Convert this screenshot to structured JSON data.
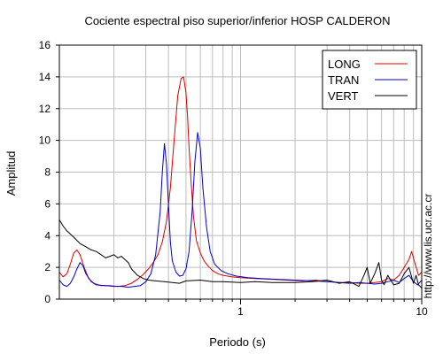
{
  "chart_data": {
    "type": "line",
    "title": "Cociente espectral piso superior/inferior  HOSP CALDERON",
    "xlabel": "Periodo (s)",
    "ylabel": "Amplitud",
    "xscale": "log",
    "xlim": [
      0.1,
      10
    ],
    "ylim": [
      0,
      16
    ],
    "x_tick_labels": [
      "1",
      "10"
    ],
    "y_ticks": [
      0,
      2,
      4,
      6,
      8,
      10,
      12,
      14,
      16
    ],
    "grid": true,
    "legend_position": "top-right",
    "series": [
      {
        "name": "LONG",
        "color": "#dd0000",
        "x": [
          0.1,
          0.105,
          0.11,
          0.115,
          0.12,
          0.125,
          0.13,
          0.137,
          0.145,
          0.155,
          0.17,
          0.19,
          0.21,
          0.23,
          0.25,
          0.27,
          0.29,
          0.31,
          0.33,
          0.35,
          0.37,
          0.39,
          0.41,
          0.43,
          0.45,
          0.47,
          0.485,
          0.5,
          0.51,
          0.52,
          0.535,
          0.55,
          0.57,
          0.6,
          0.63,
          0.66,
          0.7,
          0.75,
          0.8,
          0.9,
          1.0,
          1.2,
          1.5,
          1.8,
          2.2,
          2.6,
          3.0,
          3.5,
          4.0,
          4.5,
          5.0,
          5.5,
          6.0,
          6.5,
          7.0,
          7.5,
          8.0,
          8.5,
          8.8,
          9.2,
          9.6,
          10.0
        ],
        "values": [
          1.7,
          1.4,
          1.6,
          2.2,
          2.9,
          3.1,
          2.8,
          2.0,
          1.3,
          1.0,
          0.85,
          0.85,
          0.8,
          0.85,
          1.0,
          1.25,
          1.55,
          1.9,
          2.3,
          2.8,
          3.6,
          4.9,
          7.0,
          10.0,
          12.8,
          13.9,
          14.0,
          13.0,
          11.5,
          9.5,
          7.2,
          5.2,
          3.7,
          2.9,
          2.4,
          2.1,
          1.8,
          1.6,
          1.5,
          1.4,
          1.35,
          1.3,
          1.25,
          1.2,
          1.15,
          1.2,
          1.1,
          1.05,
          1.05,
          1.0,
          1.0,
          1.05,
          1.1,
          1.3,
          1.2,
          1.5,
          2.0,
          2.5,
          3.0,
          2.2,
          1.5,
          1.7
        ]
      },
      {
        "name": "TRAN",
        "color": "#0000cc",
        "x": [
          0.1,
          0.105,
          0.11,
          0.115,
          0.12,
          0.125,
          0.13,
          0.135,
          0.14,
          0.15,
          0.16,
          0.18,
          0.2,
          0.22,
          0.24,
          0.26,
          0.28,
          0.3,
          0.32,
          0.34,
          0.36,
          0.37,
          0.38,
          0.39,
          0.4,
          0.41,
          0.42,
          0.44,
          0.46,
          0.48,
          0.5,
          0.52,
          0.54,
          0.56,
          0.58,
          0.6,
          0.62,
          0.65,
          0.68,
          0.72,
          0.78,
          0.85,
          0.95,
          1.1,
          1.3,
          1.6,
          2.0,
          2.5,
          3.0,
          3.5,
          4.0,
          4.5,
          5.0,
          5.5,
          6.0,
          6.5,
          7.0,
          7.5,
          8.0,
          8.5,
          9.0,
          9.5,
          10.0
        ],
        "values": [
          1.2,
          0.9,
          0.8,
          1.0,
          1.4,
          1.9,
          2.3,
          2.1,
          1.6,
          1.1,
          0.9,
          0.85,
          0.8,
          0.8,
          0.75,
          0.8,
          0.85,
          1.1,
          1.6,
          2.8,
          5.5,
          8.0,
          9.8,
          8.5,
          6.0,
          3.6,
          2.4,
          1.7,
          1.45,
          1.5,
          1.9,
          3.0,
          5.5,
          8.7,
          10.5,
          9.5,
          7.0,
          4.5,
          3.0,
          2.2,
          1.8,
          1.6,
          1.45,
          1.35,
          1.3,
          1.25,
          1.2,
          1.15,
          1.1,
          1.05,
          1.0,
          1.05,
          1.0,
          0.95,
          1.0,
          1.1,
          1.2,
          1.05,
          1.3,
          1.5,
          1.1,
          0.9,
          1.2
        ]
      },
      {
        "name": "VERT",
        "color": "#000000",
        "x": [
          0.1,
          0.105,
          0.11,
          0.12,
          0.13,
          0.14,
          0.15,
          0.16,
          0.17,
          0.18,
          0.19,
          0.2,
          0.21,
          0.22,
          0.23,
          0.24,
          0.25,
          0.27,
          0.29,
          0.31,
          0.34,
          0.38,
          0.42,
          0.46,
          0.5,
          0.6,
          0.7,
          0.8,
          1.0,
          1.2,
          1.5,
          2.0,
          2.5,
          3.0,
          3.5,
          4.0,
          4.5,
          4.8,
          5.0,
          5.2,
          5.5,
          5.8,
          6.0,
          6.2,
          6.5,
          7.0,
          7.5,
          8.0,
          8.5,
          9.0,
          9.3,
          9.6,
          10.0
        ],
        "values": [
          5.0,
          4.6,
          4.3,
          3.9,
          3.5,
          3.3,
          3.1,
          3.0,
          2.8,
          2.6,
          2.7,
          2.8,
          2.6,
          2.7,
          2.5,
          2.3,
          1.9,
          1.5,
          1.3,
          1.2,
          1.15,
          1.1,
          1.05,
          1.0,
          1.15,
          1.2,
          1.1,
          1.1,
          1.05,
          1.1,
          1.05,
          1.05,
          1.1,
          1.2,
          1.0,
          1.1,
          0.8,
          1.5,
          2.0,
          1.0,
          1.6,
          2.3,
          1.2,
          0.9,
          1.5,
          0.9,
          1.0,
          1.6,
          2.0,
          1.0,
          1.5,
          0.9,
          0.7
        ]
      }
    ]
  },
  "side_url": "http://www.lis.ucr.ac.cr"
}
